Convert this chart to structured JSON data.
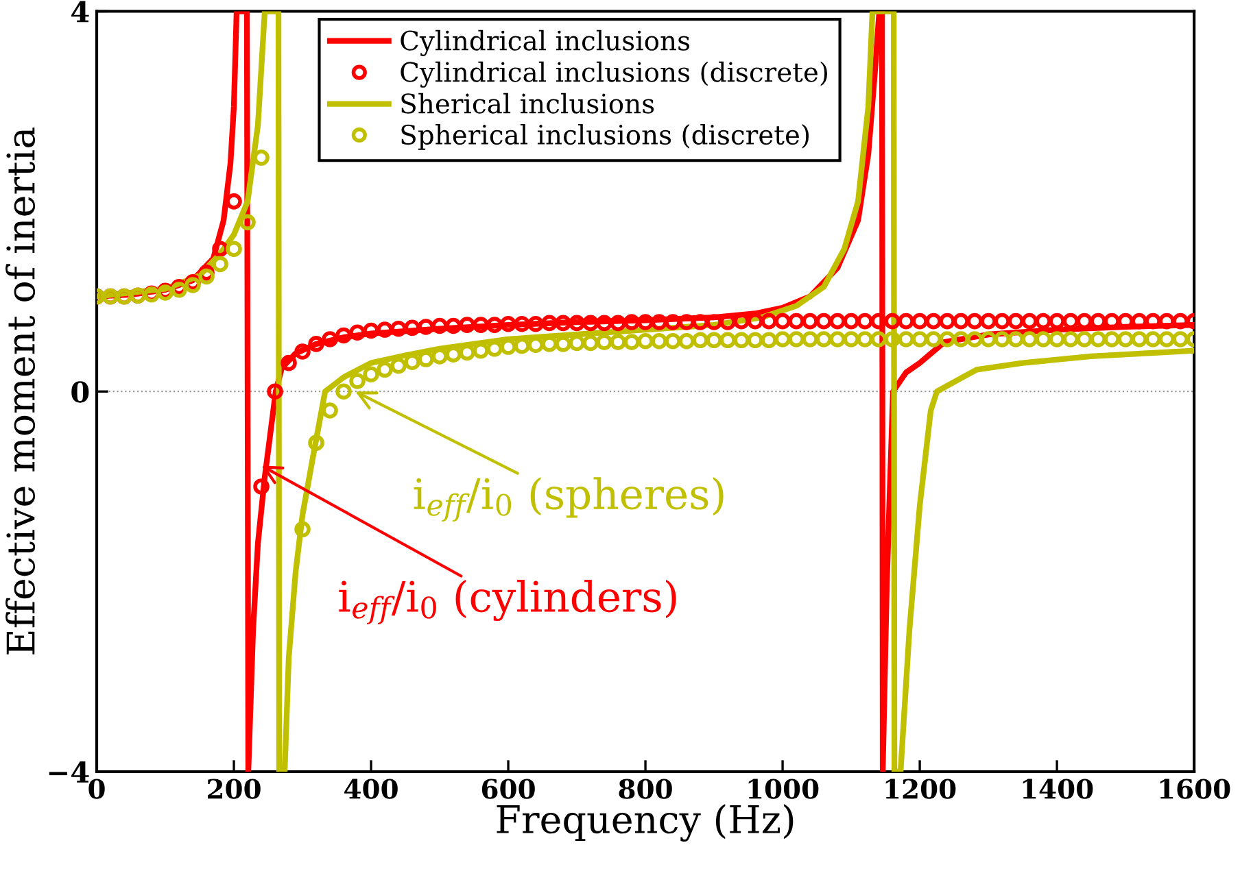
{
  "chart_data": {
    "type": "line",
    "xlabel": "Frequency (Hz)",
    "ylabel": "Effective moment of inertia",
    "xlim": [
      0,
      1600
    ],
    "ylim": [
      -4,
      4
    ],
    "xticks": [
      0,
      200,
      400,
      600,
      800,
      1000,
      1200,
      1400,
      1600
    ],
    "yticks": [
      -4,
      0,
      4
    ],
    "grid": false,
    "legend": "top",
    "ref_lines": [
      {
        "axis": "y",
        "value": 0,
        "color": "#999999",
        "line_style": "dotted"
      }
    ],
    "annotations": [
      {
        "text": "i$_{eff}$/i$_{0}$ (spheres)",
        "x": 377,
        "y": 0.0
      },
      {
        "text": "i$_{eff}$/i$_{0}$ (cylinders)",
        "x": 240,
        "y": -0.78
      }
    ],
    "series": [
      {
        "name": "Cylindrical inclusions",
        "color": "#ff0000",
        "line_style": "solid",
        "marker": "none",
        "x": [
          0,
          50,
          100,
          140,
          170,
          185,
          195,
          200,
          204,
          219,
          221,
          228,
          235,
          245,
          261,
          270,
          290,
          320,
          360,
          400,
          500,
          600,
          700,
          800,
          900,
          960,
          1000,
          1040,
          1080,
          1110,
          1125,
          1135,
          1141,
          1145,
          1146,
          1152,
          1161,
          1180,
          1200,
          1236,
          1300,
          1400,
          1500,
          1600
        ],
        "values": [
          1.0,
          1.02,
          1.07,
          1.17,
          1.4,
          1.8,
          2.4,
          3.0,
          4,
          4,
          -4,
          -2.5,
          -1.6,
          -0.9,
          0,
          0.25,
          0.4,
          0.5,
          0.57,
          0.61,
          0.66,
          0.7,
          0.73,
          0.75,
          0.78,
          0.82,
          0.88,
          1.0,
          1.3,
          1.8,
          2.5,
          3.4,
          4,
          4,
          -4,
          -2,
          0,
          0.2,
          0.3,
          0.52,
          0.6,
          0.65,
          0.68,
          0.7
        ]
      },
      {
        "name": "Cylindrical inclusions (discrete)",
        "type": "scatter",
        "color": "#ff0000",
        "marker": "circle",
        "x": [
          0,
          20,
          40,
          60,
          80,
          100,
          120,
          140,
          160,
          180,
          200,
          240,
          260,
          280,
          300,
          320,
          340,
          360,
          380,
          400,
          420,
          440,
          460,
          480,
          500,
          520,
          540,
          560,
          580,
          600,
          620,
          640,
          660,
          680,
          700,
          720,
          740,
          760,
          780,
          800,
          820,
          840,
          860,
          880,
          900,
          920,
          940,
          960,
          980,
          1000,
          1020,
          1040,
          1060,
          1080,
          1100,
          1120,
          1140,
          1160,
          1180,
          1200,
          1220,
          1240,
          1260,
          1280,
          1300,
          1320,
          1340,
          1360,
          1380,
          1400,
          1420,
          1440,
          1460,
          1480,
          1500,
          1520,
          1540,
          1560,
          1580,
          1600
        ],
        "values": [
          1.0,
          1.0,
          1.0,
          1.01,
          1.03,
          1.06,
          1.1,
          1.15,
          1.25,
          1.5,
          2.0,
          -1.0,
          0.0,
          0.3,
          0.42,
          0.5,
          0.55,
          0.59,
          0.62,
          0.64,
          0.65,
          0.66,
          0.67,
          0.68,
          0.69,
          0.69,
          0.7,
          0.7,
          0.7,
          0.71,
          0.71,
          0.71,
          0.72,
          0.72,
          0.72,
          0.72,
          0.72,
          0.72,
          0.73,
          0.73,
          0.73,
          0.73,
          0.73,
          0.73,
          0.73,
          0.73,
          0.74,
          0.74,
          0.74,
          0.74,
          0.74,
          0.74,
          0.74,
          0.74,
          0.74,
          0.74,
          0.74,
          0.74,
          0.74,
          0.74,
          0.74,
          0.74,
          0.74,
          0.74,
          0.74,
          0.74,
          0.74,
          0.74,
          0.74,
          0.74,
          0.74,
          0.74,
          0.74,
          0.74,
          0.74,
          0.74,
          0.74,
          0.74,
          0.74,
          0.74
        ]
      },
      {
        "name": "Sherical inclusions",
        "color": "#c0c000",
        "line_style": "solid",
        "marker": "none",
        "x": [
          0,
          100,
          150,
          180,
          200,
          220,
          235,
          245,
          265,
          266,
          274,
          280,
          290,
          300,
          315,
          333,
          360,
          400,
          450,
          500,
          600,
          700,
          800,
          900,
          970,
          1020,
          1060,
          1090,
          1110,
          1125,
          1131,
          1162,
          1163,
          1172,
          1185,
          1200,
          1216,
          1225,
          1250,
          1283,
          1350,
          1450,
          1600
        ],
        "values": [
          1.0,
          1.08,
          1.22,
          1.45,
          1.65,
          2.0,
          2.8,
          4,
          4,
          -4,
          -4,
          -2.8,
          -1.9,
          -1.3,
          -0.7,
          0,
          0.15,
          0.3,
          0.38,
          0.45,
          0.55,
          0.6,
          0.65,
          0.7,
          0.78,
          0.9,
          1.1,
          1.5,
          2.0,
          3.0,
          4,
          4,
          -4,
          -4,
          -2.5,
          -1.2,
          -0.2,
          0,
          0.1,
          0.23,
          0.3,
          0.37,
          0.43
        ]
      },
      {
        "name": "Spherical inclusions (discrete)",
        "type": "scatter",
        "color": "#c0c000",
        "marker": "circle",
        "x": [
          0,
          20,
          40,
          60,
          80,
          100,
          120,
          140,
          160,
          180,
          200,
          220,
          240,
          300,
          320,
          340,
          360,
          380,
          400,
          420,
          440,
          460,
          480,
          500,
          520,
          540,
          560,
          580,
          600,
          620,
          640,
          660,
          680,
          700,
          720,
          740,
          760,
          780,
          800,
          820,
          840,
          860,
          880,
          900,
          920,
          940,
          960,
          980,
          1000,
          1020,
          1040,
          1060,
          1080,
          1100,
          1120,
          1140,
          1160,
          1180,
          1200,
          1220,
          1240,
          1260,
          1280,
          1300,
          1320,
          1340,
          1360,
          1380,
          1400,
          1420,
          1440,
          1460,
          1480,
          1500,
          1520,
          1540,
          1560,
          1580,
          1600
        ],
        "values": [
          1.0,
          1.0,
          1.0,
          1.01,
          1.02,
          1.04,
          1.07,
          1.12,
          1.21,
          1.34,
          1.5,
          1.78,
          2.46,
          -1.45,
          -0.54,
          -0.2,
          0.0,
          0.11,
          0.18,
          0.23,
          0.27,
          0.31,
          0.34,
          0.37,
          0.39,
          0.41,
          0.43,
          0.45,
          0.47,
          0.48,
          0.49,
          0.5,
          0.5,
          0.51,
          0.51,
          0.52,
          0.52,
          0.52,
          0.53,
          0.53,
          0.53,
          0.53,
          0.54,
          0.54,
          0.54,
          0.54,
          0.54,
          0.54,
          0.55,
          0.55,
          0.55,
          0.55,
          0.55,
          0.55,
          0.55,
          0.55,
          0.55,
          0.55,
          0.55,
          0.55,
          0.55,
          0.55,
          0.55,
          0.55,
          0.55,
          0.55,
          0.55,
          0.55,
          0.55,
          0.55,
          0.55,
          0.55,
          0.55,
          0.55,
          0.55,
          0.55,
          0.55,
          0.55,
          0.55
        ]
      }
    ]
  }
}
